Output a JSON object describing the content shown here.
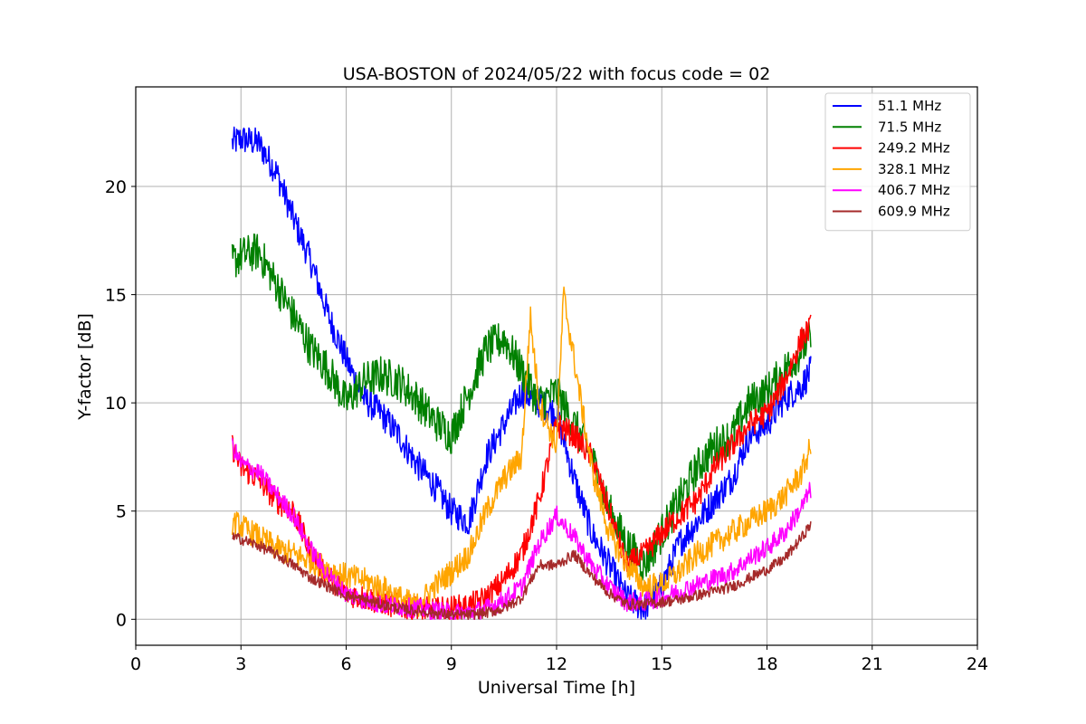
{
  "chart_data": {
    "type": "line",
    "title": "USA-BOSTON of 2024/05/22 with focus code = 02",
    "xlabel": "Universal Time [h]",
    "ylabel": "Y-factor [dB]",
    "xlim": [
      0,
      24
    ],
    "ylim": [
      -1.2,
      24.6
    ],
    "xticks": [
      0,
      3,
      6,
      9,
      12,
      15,
      18,
      21,
      24
    ],
    "yticks": [
      0,
      5,
      10,
      15,
      20
    ],
    "grid": true,
    "legend_position": "top-right",
    "series": [
      {
        "name": "51.1 MHz",
        "color": "#0000ff",
        "noise": 0.7,
        "x": [
          2.75,
          3.0,
          3.5,
          4.0,
          4.5,
          5.0,
          5.5,
          6.0,
          6.5,
          7.0,
          7.5,
          8.0,
          8.5,
          9.0,
          9.5,
          10.0,
          10.5,
          11.0,
          11.5,
          12.0,
          12.5,
          13.0,
          13.5,
          14.0,
          14.5,
          15.0,
          15.5,
          16.0,
          16.5,
          17.0,
          17.5,
          18.0,
          18.5,
          19.0,
          19.25
        ],
        "y": [
          22.0,
          22.2,
          22.0,
          20.7,
          18.5,
          16.5,
          14.0,
          12.0,
          10.2,
          9.5,
          8.5,
          7.2,
          6.2,
          5.0,
          4.5,
          7.5,
          9.0,
          10.5,
          10.0,
          9.5,
          6.5,
          4.0,
          2.5,
          1.0,
          0.5,
          1.5,
          3.5,
          4.5,
          5.5,
          6.5,
          8.5,
          9.0,
          10.2,
          10.8,
          11.5
        ]
      },
      {
        "name": "71.5 MHz",
        "color": "#008000",
        "noise": 0.9,
        "x": [
          2.75,
          3.0,
          3.5,
          4.0,
          4.5,
          5.0,
          5.5,
          6.0,
          6.5,
          7.0,
          7.5,
          8.0,
          8.5,
          9.0,
          9.5,
          10.0,
          10.5,
          11.0,
          11.5,
          12.0,
          12.5,
          13.0,
          13.5,
          14.0,
          14.5,
          15.0,
          15.5,
          16.0,
          16.5,
          17.0,
          17.5,
          18.0,
          18.5,
          19.0,
          19.25
        ],
        "y": [
          16.5,
          16.8,
          17.0,
          15.5,
          14.0,
          12.5,
          11.5,
          10.0,
          11.0,
          11.3,
          11.0,
          10.2,
          9.2,
          8.5,
          10.5,
          12.5,
          13.0,
          11.5,
          10.0,
          10.5,
          9.0,
          7.5,
          5.0,
          3.5,
          2.5,
          4.0,
          5.5,
          7.0,
          8.0,
          8.5,
          10.0,
          10.5,
          11.5,
          12.5,
          13.0
        ]
      },
      {
        "name": "249.2 MHz",
        "color": "#ff0000",
        "noise": 0.6,
        "x": [
          2.75,
          3.0,
          3.5,
          4.0,
          4.5,
          5.0,
          5.5,
          6.0,
          6.5,
          7.0,
          7.5,
          8.0,
          8.5,
          9.0,
          9.5,
          10.0,
          10.5,
          11.0,
          11.5,
          12.0,
          12.5,
          13.0,
          13.5,
          14.0,
          14.5,
          15.0,
          15.5,
          16.0,
          16.5,
          17.0,
          17.5,
          18.0,
          18.5,
          19.0,
          19.25
        ],
        "y": [
          8.0,
          7.0,
          6.5,
          5.5,
          5.0,
          3.0,
          2.0,
          1.2,
          1.0,
          0.8,
          0.6,
          0.5,
          0.4,
          0.5,
          0.6,
          1.0,
          1.8,
          3.0,
          5.5,
          9.0,
          8.5,
          7.5,
          5.0,
          2.5,
          3.0,
          4.0,
          4.8,
          5.5,
          7.0,
          8.0,
          9.0,
          9.5,
          11.0,
          13.0,
          13.5
        ]
      },
      {
        "name": "328.1 MHz",
        "color": "#ffa500",
        "noise": 0.6,
        "x": [
          2.75,
          3.0,
          3.5,
          4.0,
          4.5,
          5.0,
          5.5,
          6.0,
          6.5,
          7.0,
          7.5,
          8.0,
          8.5,
          9.0,
          9.5,
          10.0,
          10.5,
          11.0,
          11.25,
          11.5,
          12.0,
          12.2,
          12.5,
          13.0,
          13.5,
          14.0,
          14.5,
          15.0,
          15.5,
          16.0,
          16.5,
          17.0,
          17.5,
          18.0,
          18.5,
          19.0,
          19.25
        ],
        "y": [
          4.5,
          4.3,
          3.8,
          3.3,
          3.0,
          2.7,
          2.3,
          2.0,
          1.8,
          1.5,
          1.0,
          0.6,
          1.5,
          2.2,
          3.0,
          5.0,
          6.5,
          7.5,
          14.0,
          10.0,
          8.0,
          15.0,
          12.0,
          7.0,
          4.0,
          2.5,
          1.5,
          1.6,
          2.2,
          3.0,
          3.5,
          4.0,
          4.5,
          5.0,
          5.7,
          6.8,
          8.0
        ]
      },
      {
        "name": "406.7 MHz",
        "color": "#ff00ff",
        "noise": 0.45,
        "x": [
          2.75,
          3.0,
          3.5,
          4.0,
          4.5,
          5.0,
          5.5,
          6.0,
          6.5,
          7.0,
          7.5,
          8.0,
          8.5,
          9.0,
          9.5,
          10.0,
          10.5,
          11.0,
          11.5,
          12.0,
          12.5,
          13.0,
          13.5,
          14.0,
          14.5,
          15.0,
          15.5,
          16.0,
          16.5,
          17.0,
          17.5,
          18.0,
          18.5,
          19.0,
          19.25
        ],
        "y": [
          8.0,
          7.2,
          6.8,
          5.8,
          4.8,
          3.2,
          2.0,
          1.2,
          0.9,
          0.7,
          0.6,
          0.5,
          0.4,
          0.3,
          0.3,
          0.5,
          0.9,
          1.5,
          3.5,
          4.8,
          3.8,
          2.5,
          1.5,
          0.8,
          0.8,
          1.0,
          1.3,
          1.6,
          1.9,
          2.2,
          2.8,
          3.3,
          4.0,
          5.2,
          6.0
        ]
      },
      {
        "name": "609.9 MHz",
        "color": "#a52a2a",
        "noise": 0.25,
        "x": [
          2.75,
          3.0,
          3.5,
          4.0,
          4.5,
          5.0,
          5.5,
          6.0,
          6.5,
          7.0,
          7.5,
          8.0,
          8.5,
          9.0,
          9.5,
          10.0,
          10.5,
          11.0,
          11.5,
          12.0,
          12.5,
          13.0,
          13.5,
          14.0,
          14.5,
          15.0,
          15.5,
          16.0,
          16.5,
          17.0,
          17.5,
          18.0,
          18.5,
          19.0,
          19.25
        ],
        "y": [
          3.8,
          3.7,
          3.4,
          3.0,
          2.5,
          1.9,
          1.5,
          1.1,
          0.9,
          0.7,
          0.5,
          0.4,
          0.3,
          0.2,
          0.2,
          0.3,
          0.5,
          1.0,
          2.5,
          2.5,
          3.0,
          2.0,
          1.2,
          0.7,
          0.7,
          0.8,
          0.9,
          1.1,
          1.3,
          1.5,
          1.9,
          2.3,
          2.8,
          3.8,
          4.4
        ]
      }
    ]
  }
}
